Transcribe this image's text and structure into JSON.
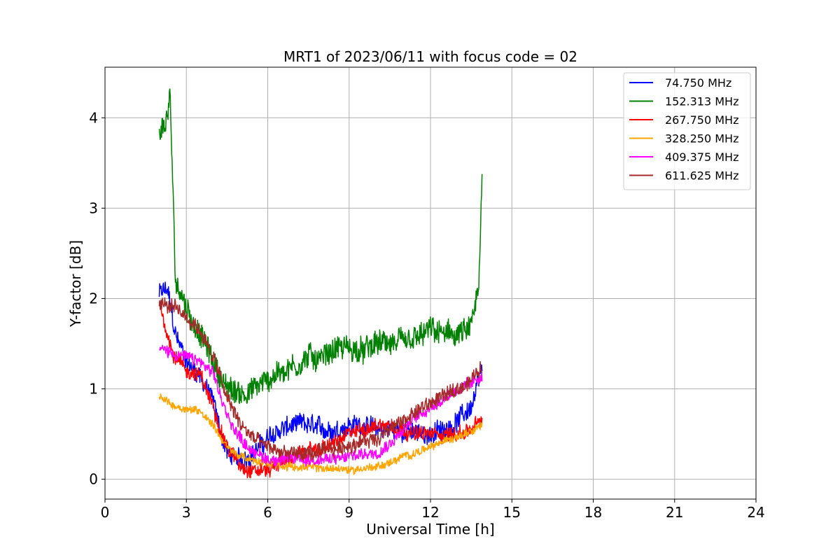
{
  "chart_data": {
    "type": "line",
    "title": "MRT1 of 2023/06/11 with focus code = 02",
    "xlabel": "Universal Time [h]",
    "ylabel": "Y-factor [dB]",
    "xlim": [
      0,
      24
    ],
    "ylim": [
      -0.22,
      4.56
    ],
    "xticks": [
      0,
      3,
      6,
      9,
      12,
      15,
      18,
      21,
      24
    ],
    "xtick_labels": [
      "0",
      "3",
      "6",
      "9",
      "12",
      "15",
      "18",
      "21",
      "24"
    ],
    "yticks": [
      0,
      1,
      2,
      3,
      4
    ],
    "ytick_labels": [
      "0",
      "1",
      "2",
      "3",
      "4"
    ],
    "grid": true,
    "legend_position": "top-right",
    "series": [
      {
        "name": " 74.750 MHz",
        "color": "#0000ff",
        "x": [
          2.0,
          2.3,
          2.6,
          3.0,
          3.5,
          4.0,
          4.2,
          4.5,
          5.0,
          5.5,
          6.0,
          6.5,
          7.0,
          7.5,
          8.0,
          8.5,
          9.0,
          9.5,
          10.0,
          10.5,
          11.0,
          11.5,
          12.0,
          12.5,
          13.0,
          13.5,
          13.9
        ],
        "y": [
          2.05,
          2.1,
          1.6,
          1.3,
          1.15,
          0.85,
          0.6,
          0.3,
          0.2,
          0.3,
          0.45,
          0.55,
          0.6,
          0.6,
          0.55,
          0.55,
          0.6,
          0.6,
          0.55,
          0.55,
          0.55,
          0.5,
          0.5,
          0.55,
          0.65,
          0.8,
          1.2
        ],
        "noise": 0.2
      },
      {
        "name": "152.313 MHz",
        "color": "#008000",
        "x": [
          2.0,
          2.2,
          2.4,
          2.5,
          2.6,
          3.0,
          3.5,
          4.0,
          4.5,
          5.0,
          5.5,
          6.0,
          6.5,
          7.0,
          7.5,
          8.0,
          8.5,
          9.0,
          9.5,
          10.0,
          10.5,
          11.0,
          11.5,
          12.0,
          12.5,
          13.0,
          13.5,
          13.8,
          13.9
        ],
        "y": [
          3.8,
          3.9,
          4.2,
          3.2,
          2.2,
          1.9,
          1.6,
          1.3,
          1.0,
          0.95,
          1.0,
          1.1,
          1.2,
          1.25,
          1.35,
          1.35,
          1.45,
          1.45,
          1.4,
          1.5,
          1.5,
          1.5,
          1.55,
          1.65,
          1.6,
          1.6,
          1.65,
          2.2,
          3.3
        ],
        "noise": 0.25
      },
      {
        "name": "267.750 MHz",
        "color": "#ff0000",
        "x": [
          2.0,
          2.5,
          3.0,
          3.5,
          4.0,
          4.5,
          5.0,
          5.5,
          6.0,
          6.5,
          7.0,
          7.5,
          8.0,
          8.5,
          9.0,
          9.5,
          10.0,
          10.5,
          11.0,
          11.5,
          12.0,
          12.5,
          13.0,
          13.5,
          13.9
        ],
        "y": [
          1.95,
          1.4,
          1.2,
          1.15,
          0.8,
          0.35,
          0.15,
          0.1,
          0.1,
          0.2,
          0.25,
          0.3,
          0.35,
          0.4,
          0.5,
          0.55,
          0.6,
          0.6,
          0.55,
          0.5,
          0.5,
          0.5,
          0.5,
          0.55,
          0.65
        ],
        "noise": 0.15
      },
      {
        "name": "328.250 MHz",
        "color": "#ffa500",
        "x": [
          2.0,
          2.5,
          3.0,
          3.5,
          4.0,
          4.5,
          5.0,
          5.5,
          6.0,
          6.5,
          7.0,
          7.5,
          8.0,
          8.5,
          9.0,
          9.5,
          10.0,
          10.5,
          11.0,
          11.5,
          12.0,
          12.5,
          13.0,
          13.5,
          13.9
        ],
        "y": [
          0.92,
          0.82,
          0.78,
          0.76,
          0.6,
          0.35,
          0.25,
          0.2,
          0.18,
          0.15,
          0.14,
          0.13,
          0.12,
          0.12,
          0.1,
          0.12,
          0.14,
          0.18,
          0.25,
          0.3,
          0.35,
          0.42,
          0.48,
          0.55,
          0.6
        ],
        "noise": 0.08
      },
      {
        "name": "409.375 MHz",
        "color": "#ff00ff",
        "x": [
          2.0,
          2.5,
          3.0,
          3.5,
          4.0,
          4.5,
          5.0,
          5.5,
          6.0,
          6.5,
          7.0,
          7.5,
          8.0,
          8.5,
          9.0,
          9.5,
          10.0,
          10.5,
          11.0,
          11.5,
          12.0,
          12.5,
          13.0,
          13.5,
          13.9
        ],
        "y": [
          1.45,
          1.4,
          1.35,
          1.3,
          1.15,
          0.7,
          0.45,
          0.3,
          0.22,
          0.22,
          0.22,
          0.22,
          0.22,
          0.22,
          0.25,
          0.28,
          0.3,
          0.4,
          0.55,
          0.7,
          0.8,
          0.9,
          1.0,
          1.05,
          1.15
        ],
        "noise": 0.12
      },
      {
        "name": "611.625 MHz",
        "color": "#a52a2a",
        "x": [
          2.0,
          2.5,
          3.0,
          3.5,
          4.0,
          4.5,
          5.0,
          5.5,
          6.0,
          6.5,
          7.0,
          7.5,
          8.0,
          8.5,
          9.0,
          9.5,
          10.0,
          10.5,
          11.0,
          11.5,
          12.0,
          12.5,
          13.0,
          13.5,
          13.9
        ],
        "y": [
          1.95,
          1.9,
          1.8,
          1.65,
          1.35,
          0.9,
          0.6,
          0.45,
          0.35,
          0.3,
          0.28,
          0.28,
          0.3,
          0.33,
          0.38,
          0.42,
          0.45,
          0.55,
          0.65,
          0.75,
          0.85,
          0.92,
          1.0,
          1.1,
          1.25
        ],
        "noise": 0.15
      }
    ]
  }
}
